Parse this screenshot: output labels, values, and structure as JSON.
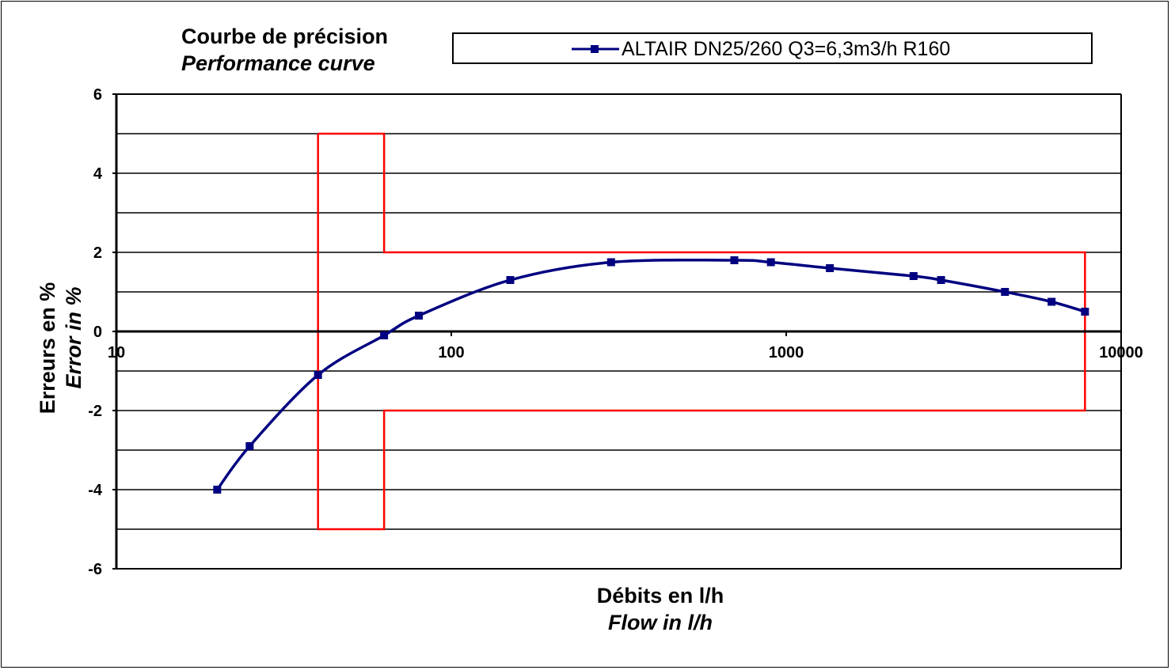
{
  "chart_data": {
    "type": "line",
    "title": "Courbe de précision",
    "subtitle": "Performance  curve",
    "xlabel": "Débits en l/h",
    "xlabel_en": "Flow in l/h",
    "ylabel": "Erreurs en %",
    "ylabel_en": "Error in %",
    "x_scale": "log",
    "xlim": [
      10,
      10000
    ],
    "ylim": [
      -6,
      6
    ],
    "x_ticks": [
      10,
      100,
      1000,
      10000
    ],
    "x_tick_labels": [
      "10",
      "100",
      "1000",
      "10000"
    ],
    "y_ticks": [
      -6,
      -4,
      -2,
      0,
      2,
      4,
      6
    ],
    "y_tick_labels": [
      "-6",
      "-4",
      "-2",
      "0",
      "2",
      "4",
      "6"
    ],
    "y_gridlines": [
      -6,
      -5,
      -4,
      -3,
      -2,
      -1,
      0,
      1,
      2,
      3,
      4,
      5,
      6
    ],
    "grid": true,
    "legend_position": "top",
    "series": [
      {
        "name": "ALTAIR DN25/260 Q3=6,3m3/h R160",
        "color": "#000080",
        "marker": "square",
        "x": [
          20,
          25,
          40,
          63,
          80,
          150,
          300,
          700,
          900,
          1350,
          2400,
          2900,
          4500,
          6200,
          7800
        ],
        "y": [
          -4.0,
          -2.9,
          -1.1,
          -0.1,
          0.4,
          1.3,
          1.75,
          1.8,
          1.75,
          1.6,
          1.4,
          1.3,
          1.0,
          0.75,
          0.5
        ]
      }
    ],
    "tolerance_envelope": {
      "color": "#ff0000",
      "points": [
        [
          40,
          5
        ],
        [
          63,
          5
        ],
        [
          63,
          2
        ],
        [
          7800,
          2
        ],
        [
          7800,
          -2
        ],
        [
          63,
          -2
        ],
        [
          63,
          -5
        ],
        [
          40,
          -5
        ],
        [
          40,
          5
        ]
      ]
    }
  }
}
